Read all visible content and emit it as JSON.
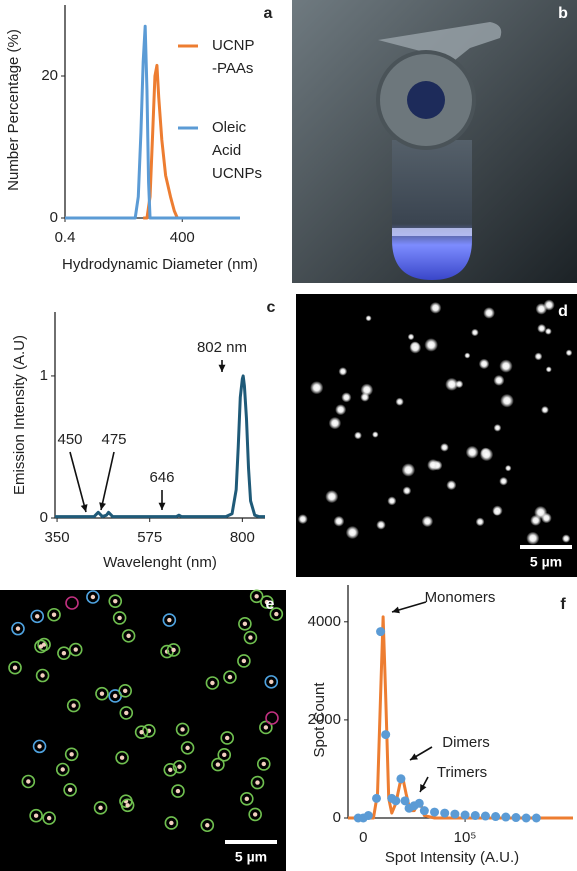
{
  "chart_data": [
    {
      "type": "line",
      "panel_label": "a",
      "ylabel": "Number Percentage (%)",
      "xlabel": "Hydrodynamic Diameter (nm)",
      "xscale": "log",
      "xlim": [
        0.4,
        12000
      ],
      "ylim": [
        0,
        30
      ],
      "xticks": [
        0.4,
        400
      ],
      "yticks": [
        0,
        20
      ],
      "series": [
        {
          "name": "UCNP\n-PAAs",
          "color": "#ed7d31",
          "x": [
            40,
            50,
            60,
            70,
            80,
            90,
            100,
            120,
            150,
            200,
            250,
            300
          ],
          "values": [
            0,
            0,
            3,
            12,
            20,
            21.5,
            17,
            11,
            6,
            3,
            1,
            0
          ]
        },
        {
          "name": "Oleic\nAcid\nUCNPs",
          "color": "#5b9bd5",
          "x": [
            0.4,
            25,
            30,
            35,
            40,
            45,
            50,
            55,
            60,
            12000
          ],
          "values": [
            0,
            0,
            3,
            12,
            22,
            27,
            18,
            5,
            0,
            0
          ]
        }
      ]
    },
    {
      "type": "line",
      "panel_label": "c",
      "ylabel": "Emission Intensity (A.U)",
      "xlabel": "Wavelenght (nm)",
      "xlim": [
        345,
        855
      ],
      "ylim": [
        0,
        1.45
      ],
      "xticks": [
        350,
        575,
        800
      ],
      "yticks": [
        0,
        1
      ],
      "series": [
        {
          "color": "#1f5a78",
          "x": [
            345,
            400,
            440,
            450,
            460,
            470,
            475,
            485,
            500,
            600,
            640,
            646,
            652,
            700,
            760,
            775,
            785,
            790,
            795,
            800,
            802,
            805,
            810,
            815,
            820,
            830,
            840,
            855
          ],
          "values": [
            0.01,
            0.01,
            0.01,
            0.04,
            0.01,
            0.02,
            0.04,
            0.01,
            0.01,
            0.01,
            0.01,
            0.02,
            0.01,
            0.01,
            0.01,
            0.03,
            0.2,
            0.5,
            0.85,
            0.98,
            1.0,
            0.93,
            0.7,
            0.35,
            0.12,
            0.02,
            0.01,
            0.01
          ]
        }
      ],
      "annotations": [
        "802 nm",
        "450",
        "475",
        "646"
      ]
    },
    {
      "type": "line",
      "panel_label": "f",
      "ylabel": "Spot Count",
      "xlabel": "Spot  Intensity (A.U.)",
      "xlim": [
        -15000,
        206000
      ],
      "ylim": [
        0,
        4750
      ],
      "xticks": [
        0,
        {
          "value": 100000,
          "label": "10⁵"
        }
      ],
      "yticks": [
        0,
        2000,
        4000
      ],
      "series": [
        {
          "style": "line",
          "color": "#ed7d31",
          "x": [
            -15000,
            10000,
            14000,
            17000,
            19500,
            22000,
            25000,
            28000,
            32000,
            36000,
            39000,
            42000,
            46000,
            50000,
            54000,
            57000,
            60000,
            70000,
            206000
          ],
          "values": [
            0,
            0,
            500,
            2500,
            4100,
            2500,
            400,
            100,
            300,
            700,
            800,
            500,
            150,
            150,
            300,
            250,
            50,
            0,
            0
          ]
        },
        {
          "style": "markers",
          "color": "#5b9bd5",
          "x": [
            -5000,
            0,
            5000,
            13000,
            17000,
            22000,
            28000,
            32000,
            37000,
            41000,
            45000,
            50000,
            55000,
            60000,
            70000,
            80000,
            90000,
            100000,
            110000,
            120000,
            130000,
            140000,
            150000,
            160000,
            170000
          ],
          "values": [
            0,
            0,
            50,
            400,
            3800,
            1700,
            400,
            350,
            800,
            350,
            200,
            250,
            300,
            150,
            120,
            100,
            80,
            60,
            50,
            40,
            30,
            20,
            10,
            0,
            0
          ]
        }
      ],
      "annotations": [
        "Monomers",
        "Dimers",
        "Trimers"
      ]
    }
  ],
  "images": [
    {
      "panel_label": "b"
    },
    {
      "panel_label": "d",
      "scale_bar": "5 µm"
    },
    {
      "panel_label": "e",
      "scale_bar": "5 µm"
    }
  ]
}
